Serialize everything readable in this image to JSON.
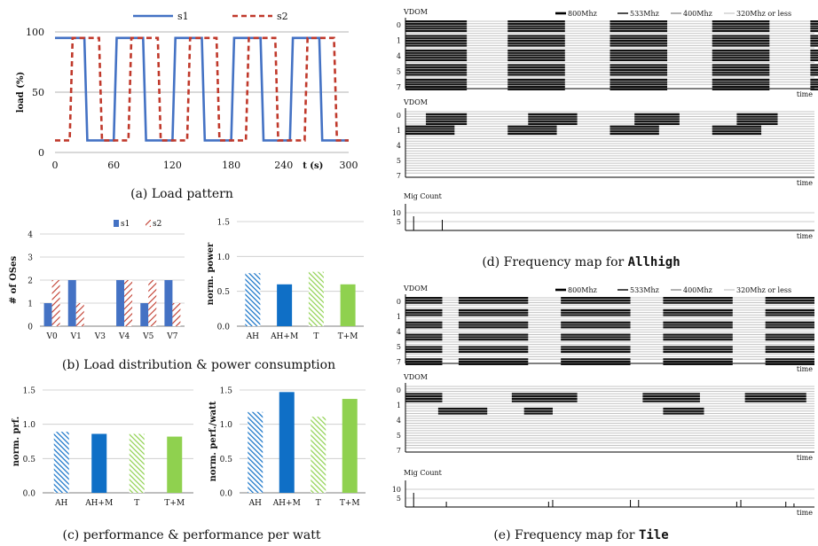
{
  "captions": {
    "a": "(a) Load pattern",
    "b": "(b) Load distribution & power consumption",
    "c": "(c) performance & performance per watt",
    "d_prefix": "(d) Frequency map for ",
    "d_name": "Allhigh",
    "e_prefix": "(e) Frequency map for ",
    "e_name": "Tile"
  },
  "colors": {
    "s1": "#4472c4",
    "s2": "#c0392b",
    "blue": "#0f6fc6",
    "green": "#8fd14f"
  },
  "chart_data": [
    {
      "id": "load_pattern",
      "type": "line",
      "xlabel": "t (s)",
      "ylabel": "load (%)",
      "xlim": [
        0,
        300
      ],
      "ylim": [
        0,
        100
      ],
      "xticks": [
        0,
        60,
        120,
        180,
        240,
        300
      ],
      "yticks": [
        0,
        50,
        100
      ],
      "legend": "top",
      "series": [
        {
          "name": "s1",
          "style": "solid",
          "x": [
            0,
            30,
            33,
            60,
            63,
            90,
            93,
            120,
            123,
            150,
            153,
            180,
            183,
            210,
            213,
            240,
            243,
            270,
            273,
            300
          ],
          "y": [
            95,
            95,
            10,
            10,
            95,
            95,
            10,
            10,
            95,
            95,
            10,
            10,
            95,
            95,
            10,
            10,
            95,
            95,
            10,
            10
          ]
        },
        {
          "name": "s2",
          "style": "dashed",
          "x": [
            0,
            15,
            18,
            45,
            48,
            75,
            78,
            105,
            108,
            135,
            138,
            165,
            168,
            195,
            198,
            225,
            228,
            255,
            258,
            285,
            288,
            300
          ],
          "y": [
            10,
            10,
            95,
            95,
            10,
            10,
            95,
            95,
            10,
            10,
            95,
            95,
            10,
            10,
            95,
            95,
            10,
            10,
            95,
            95,
            10,
            10
          ]
        }
      ]
    },
    {
      "id": "load_distribution",
      "type": "bar",
      "ylabel": "# of OSes",
      "ylim": [
        0,
        4
      ],
      "yticks": [
        0,
        1,
        2,
        3,
        4
      ],
      "categories": [
        "V0",
        "V1",
        "V3",
        "V4",
        "V5",
        "V7"
      ],
      "legend": "top",
      "series": [
        {
          "name": "s1",
          "values": [
            1,
            2,
            0,
            2,
            1,
            2
          ]
        },
        {
          "name": "s2",
          "values": [
            2,
            1,
            0,
            2,
            2,
            1
          ]
        }
      ]
    },
    {
      "id": "norm_power",
      "type": "bar",
      "ylabel": "norm. power",
      "ylim": [
        0,
        1.5
      ],
      "yticks": [
        "0.0",
        "0.5",
        "1.0",
        "1.5"
      ],
      "categories": [
        "AH",
        "AH+M",
        "T",
        "T+M"
      ],
      "values": [
        0.76,
        0.6,
        0.78,
        0.6
      ]
    },
    {
      "id": "norm_perf",
      "type": "bar",
      "ylabel": "norm. prf.",
      "ylim": [
        0,
        1.5
      ],
      "yticks": [
        "0.0",
        "0.5",
        "1.0",
        "1.5"
      ],
      "categories": [
        "AH",
        "AH+M",
        "T",
        "T+M"
      ],
      "values": [
        0.89,
        0.86,
        0.86,
        0.82
      ]
    },
    {
      "id": "norm_perf_watt",
      "type": "bar",
      "ylabel": "norm. perf./watt",
      "ylim": [
        0,
        1.5
      ],
      "yticks": [
        "0.0",
        "0.5",
        "1.0",
        "1.5"
      ],
      "categories": [
        "AH",
        "AH+M",
        "T",
        "T+M"
      ],
      "values": [
        1.18,
        1.47,
        1.11,
        1.37
      ]
    }
  ],
  "freq_maps": {
    "vdom_label": "VDOM",
    "time_label": "time",
    "mig_label": "Mig Count",
    "mig_ticks": [
      "10",
      "5"
    ],
    "legend": [
      "800Mhz",
      "533Mhz",
      "400Mhz",
      "320Mhz or less"
    ],
    "rows": [
      "0",
      "1",
      "4",
      "5",
      "7"
    ]
  }
}
